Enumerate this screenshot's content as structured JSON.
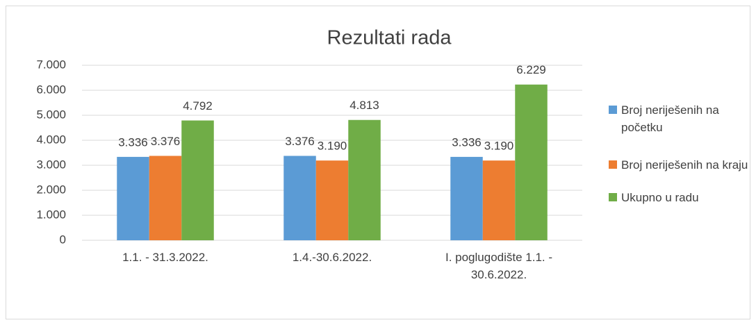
{
  "chart_data": {
    "type": "bar",
    "title": "Rezultati rada",
    "categories": [
      "1.1. - 31.3.2022.",
      "1.4.-30.6.2022.",
      "I. poglugodište 1.1. - 30.6.2022."
    ],
    "series": [
      {
        "name": "Broj neriješenih na početku",
        "color": "#5b9bd5",
        "values": [
          3336,
          3376,
          3336
        ],
        "value_labels": [
          "3.336",
          "3.376",
          "3.336"
        ]
      },
      {
        "name": "Broj neriješenih na kraju",
        "color": "#ed7d31",
        "values": [
          3376,
          3190,
          3190
        ],
        "value_labels": [
          "3.376",
          "3.190",
          "3.190"
        ]
      },
      {
        "name": "Ukupno u radu",
        "color": "#70ad47",
        "values": [
          4792,
          4813,
          6229
        ],
        "value_labels": [
          "4.792",
          "4.813",
          "6.229"
        ]
      }
    ],
    "ylim": [
      0,
      7000
    ],
    "yticks": [
      0,
      {
        "value": 1000,
        "label": "1.000"
      },
      {
        "value": 2000,
        "label": "2.000"
      },
      {
        "value": 3000,
        "label": "3.000"
      },
      {
        "value": 4000,
        "label": "4.000"
      },
      {
        "value": 5000,
        "label": "5.000"
      },
      {
        "value": 6000,
        "label": "6.000"
      },
      {
        "value": 7000,
        "label": "7.000"
      }
    ],
    "grid": true,
    "legend": "right"
  }
}
